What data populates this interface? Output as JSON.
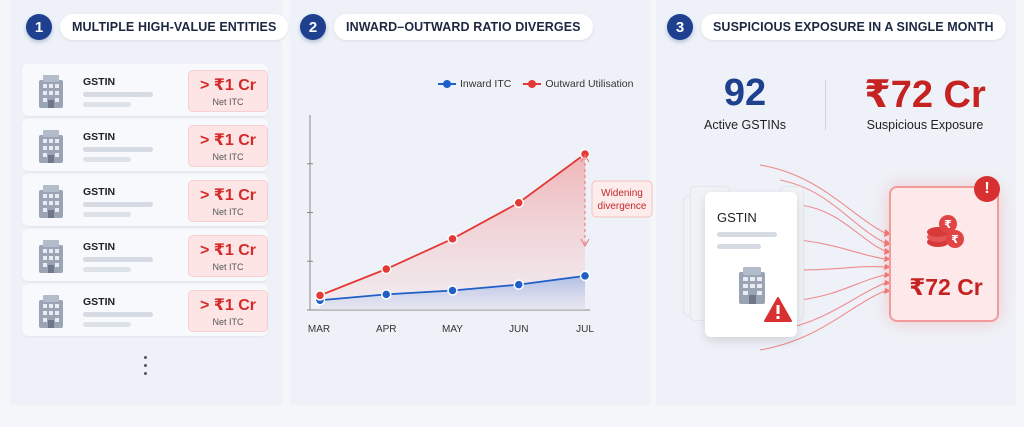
{
  "panel1": {
    "number": "1",
    "title": "MULTIPLE HIGH-VALUE ENTITIES",
    "rows": [
      {
        "label": "GSTIN",
        "value": "> ₹1 Cr",
        "sub": "Net ITC"
      },
      {
        "label": "GSTIN",
        "value": "> ₹1 Cr",
        "sub": "Net ITC"
      },
      {
        "label": "GSTIN",
        "value": "> ₹1 Cr",
        "sub": "Net ITC"
      },
      {
        "label": "GSTIN",
        "value": "> ₹1 Cr",
        "sub": "Net ITC"
      },
      {
        "label": "GSTIN",
        "value": "> ₹1 Cr",
        "sub": "Net ITC"
      }
    ],
    "more_icon": "vertical-ellipsis-icon"
  },
  "panel2": {
    "number": "2",
    "title": "INWARD–OUTWARD RATIO DIVERGES",
    "annotation_line1": "Widening",
    "annotation_line2": "divergence",
    "chart_data": {
      "type": "line",
      "categories": [
        "MAR",
        "APR",
        "MAY",
        "JUN",
        "JUL"
      ],
      "series": [
        {
          "name": "Inward ITC",
          "color": "#1e5fc8",
          "values": [
            1.0,
            1.6,
            2.0,
            2.6,
            3.5
          ]
        },
        {
          "name": "Outward Utilisation",
          "color": "#e53935",
          "values": [
            1.5,
            4.2,
            7.3,
            11.0,
            16.0
          ]
        }
      ],
      "ylim": [
        0,
        20
      ],
      "grid": false,
      "legend": "top-right"
    }
  },
  "panel3": {
    "number": "3",
    "title": "SUSPICIOUS EXPOSURE IN A SINGLE MONTH",
    "stat1_value": "92",
    "stat1_label": "Active GSTINs",
    "stat2_value": "₹72 Cr",
    "stat2_label": "Suspicious Exposure",
    "card_label": "GSTIN",
    "target_amount": "₹72 Cr",
    "warning_icon": "warning-triangle-icon",
    "alert_icon": "alert-circle-icon",
    "coins_icon": "rupee-coins-icon"
  },
  "colors": {
    "navy": "#1f3f8f",
    "red": "#d42a2a",
    "blue": "#1e5fc8"
  }
}
